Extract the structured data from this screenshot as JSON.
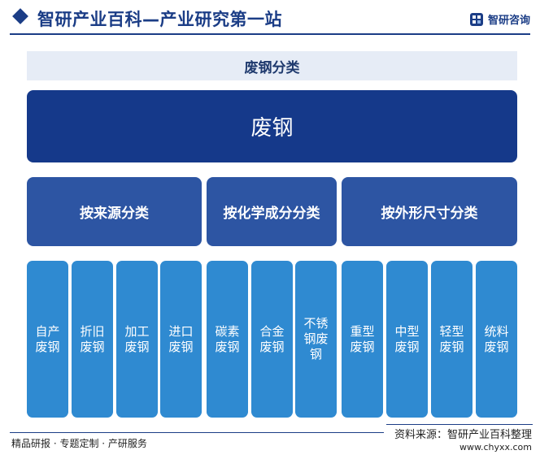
{
  "header": {
    "title": "智研产业百科—产业研究第一站",
    "brand": "智研咨询"
  },
  "diagram": {
    "band_title": "废钢分类",
    "root": "废钢",
    "categories": [
      {
        "label": "按来源分类"
      },
      {
        "label": "按化学成分分类"
      },
      {
        "label": "按外形尺寸分类"
      }
    ],
    "leaves": [
      {
        "label": "自产废钢"
      },
      {
        "label": "折旧废钢"
      },
      {
        "label": "加工废钢"
      },
      {
        "label": "进口废钢"
      },
      {
        "label": "碳素废钢"
      },
      {
        "label": "合金废钢"
      },
      {
        "label": "不锈钢废钢"
      },
      {
        "label": "重型废钢"
      },
      {
        "label": "中型废钢"
      },
      {
        "label": "轻型废钢"
      },
      {
        "label": "统料废钢"
      }
    ]
  },
  "footer": {
    "tagline": "精品研报 · 专题定制 · 产研服务",
    "source": "资料来源：智研产业百科整理",
    "url": "www.chyxx.com"
  },
  "colors": {
    "primary": "#1b3d86",
    "root_box": "#15398a",
    "category_box": "#2d55a3",
    "leaf_box": "#2f8ad1",
    "band": "#e6ecf6"
  }
}
